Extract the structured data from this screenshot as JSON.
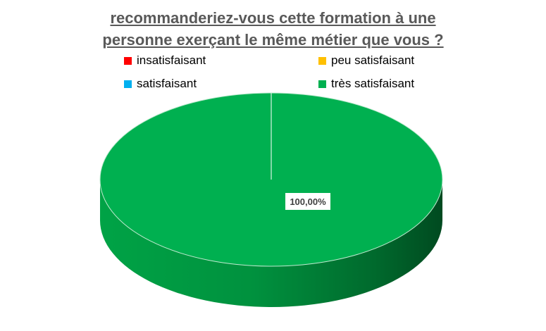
{
  "title_lines": [
    "recommanderiez-vous cette formation à une",
    "personne exerçant le même métier que vous ?"
  ],
  "colors": {
    "insatisfaisant": "#ff0000",
    "peu_satisfaisant": "#ffc000",
    "satisfaisant": "#00b0f0",
    "tres_satisfaisant": "#00b050"
  },
  "chart_data": {
    "type": "pie",
    "title": "recommanderiez-vous cette formation à une personne exerçant le même métier que vous ?",
    "style": "3d",
    "legend_placement": "top",
    "categories": [
      "insatisfaisant",
      "peu satisfaisant",
      "satisfaisant",
      "très satisfaisant"
    ],
    "values": [
      0,
      0,
      0,
      100
    ],
    "data_labels": [
      "",
      "",
      "",
      "100,00%"
    ],
    "colors": [
      "#ff0000",
      "#ffc000",
      "#00b0f0",
      "#00b050"
    ]
  }
}
